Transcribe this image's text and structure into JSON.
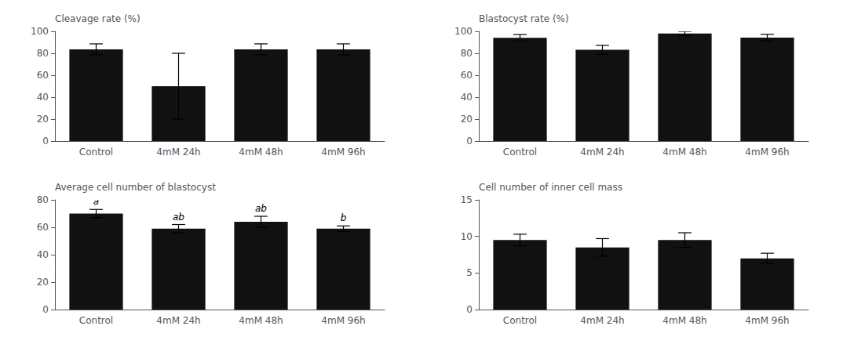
{
  "chart_data": [
    {
      "type": "bar",
      "ylabel": "Cleavage rate (%)",
      "categories": [
        "Control",
        "4mM 24h",
        "4mM 48h",
        "4mM 96h"
      ],
      "values": [
        83.6,
        50.0,
        83.6,
        83.6
      ],
      "errors": [
        5.0,
        30.0,
        5.0,
        5.0
      ],
      "ylim": [
        0,
        100
      ],
      "yticks": [
        0,
        20,
        40,
        60,
        80,
        100
      ],
      "color": "#111111",
      "grid": false
    },
    {
      "type": "bar",
      "ylabel": "Blastocyst rate (%)",
      "categories": [
        "Control",
        "4mM 24h",
        "4mM 48h",
        "4mM 96h"
      ],
      "values": [
        94.1,
        83.3,
        98.0,
        94.3
      ],
      "errors": [
        3.0,
        4.0,
        2.0,
        3.0
      ],
      "ylim": [
        0,
        100
      ],
      "yticks": [
        0,
        20,
        40,
        60,
        80,
        100
      ],
      "color": "#111111",
      "grid": false
    },
    {
      "type": "bar",
      "ylabel": "Average cell number of blastocyst",
      "categories": [
        "Control",
        "4mM 24h",
        "4mM 48h",
        "4mM 96h"
      ],
      "values": [
        70.0,
        59.0,
        64.0,
        59.0
      ],
      "errors": [
        3.0,
        3.0,
        4.0,
        2.0
      ],
      "annotations": [
        "a",
        "ab",
        "ab",
        "b"
      ],
      "ylim": [
        0,
        80
      ],
      "yticks": [
        0,
        20,
        40,
        60,
        80
      ],
      "color": "#111111",
      "grid": false
    },
    {
      "type": "bar",
      "ylabel": "Cell number of inner cell mass",
      "categories": [
        "Control",
        "4mM 24h",
        "4mM 48h",
        "4mM 96h"
      ],
      "values": [
        9.5,
        8.5,
        9.5,
        7.0
      ],
      "errors": [
        0.8,
        1.2,
        1.0,
        0.7
      ],
      "ylim": [
        0,
        15
      ],
      "yticks": [
        0,
        5,
        10,
        15
      ],
      "color": "#111111",
      "grid": false
    }
  ]
}
